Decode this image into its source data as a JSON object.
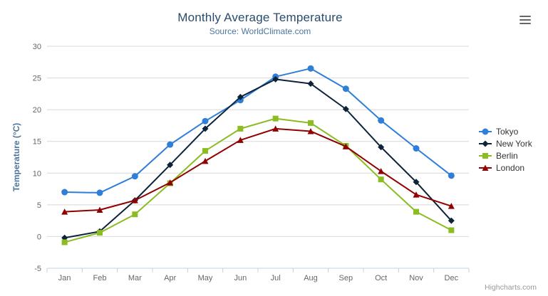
{
  "chart_data": {
    "type": "line",
    "title": "Monthly Average Temperature",
    "subtitle": "Source: WorldClimate.com",
    "categories": [
      "Jan",
      "Feb",
      "Mar",
      "Apr",
      "May",
      "Jun",
      "Jul",
      "Aug",
      "Sep",
      "Oct",
      "Nov",
      "Dec"
    ],
    "xlabel": "",
    "ylabel": "Temperature (°C)",
    "ylim": [
      -5,
      30
    ],
    "ytick_step": 5,
    "grid": true,
    "legend_position": "right",
    "series": [
      {
        "name": "Tokyo",
        "color": "#2f7ed8",
        "marker": "circle",
        "values": [
          7.0,
          6.9,
          9.5,
          14.5,
          18.2,
          21.5,
          25.2,
          26.5,
          23.3,
          18.3,
          13.9,
          9.6
        ]
      },
      {
        "name": "New York",
        "color": "#0d233a",
        "marker": "diamond",
        "values": [
          -0.2,
          0.8,
          5.7,
          11.3,
          17.0,
          22.0,
          24.8,
          24.1,
          20.1,
          14.1,
          8.6,
          2.5
        ]
      },
      {
        "name": "Berlin",
        "color": "#8bbc21",
        "marker": "square",
        "values": [
          -0.9,
          0.6,
          3.5,
          8.4,
          13.5,
          17.0,
          18.6,
          17.9,
          14.3,
          9.0,
          3.9,
          1.0
        ]
      },
      {
        "name": "London",
        "color": "#910000",
        "marker": "triangle",
        "values": [
          3.9,
          4.2,
          5.7,
          8.5,
          11.9,
          15.2,
          17.0,
          16.6,
          14.2,
          10.3,
          6.6,
          4.8
        ]
      }
    ],
    "credits_text": "Highcharts.com"
  },
  "colors": {
    "title": "#274b6d",
    "subtitle": "#4d759e",
    "axis_title": "#4d759e",
    "axis_label": "#666666",
    "grid_line": "#d8d8d8",
    "axis_line": "#c0d0e0",
    "legend_text": "#333333",
    "credits": "#999999",
    "menu_icon": "#666666",
    "background": "#ffffff"
  }
}
